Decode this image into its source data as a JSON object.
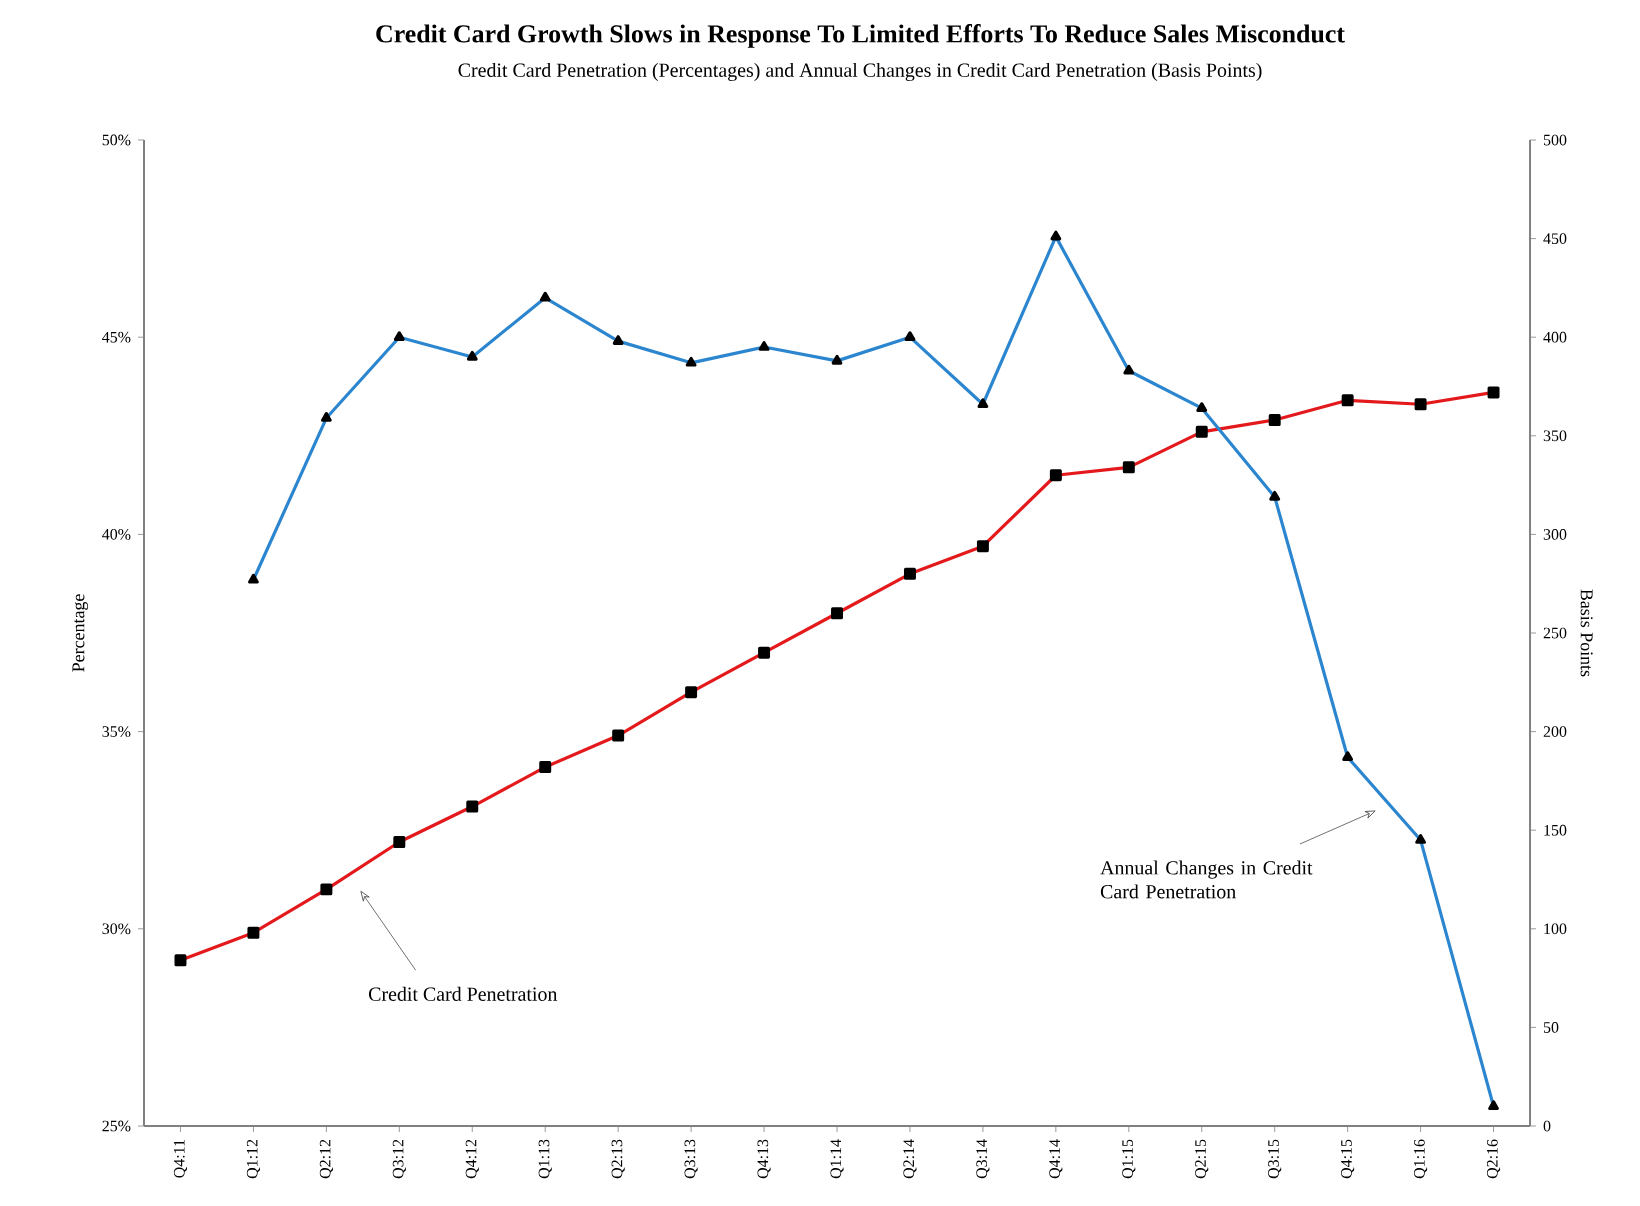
{
  "chart_data": {
    "type": "line",
    "title": "Credit Card Growth Slows in Response To Limited Efforts To Reduce Sales Misconduct",
    "subtitle": "Credit Card Penetration (Percentages) and Annual Changes in Credit Card Penetration (Basis Points)",
    "ylabel": "Percentage",
    "y2label": "Basis Points",
    "categories": [
      "Q4:11",
      "Q1:12",
      "Q2:12",
      "Q3:12",
      "Q4:12",
      "Q1:13",
      "Q2:13",
      "Q3:13",
      "Q4:13",
      "Q1:14",
      "Q2:14",
      "Q3:14",
      "Q4:14",
      "Q1:15",
      "Q2:15",
      "Q3:15",
      "Q4:15",
      "Q1:16",
      "Q2:16"
    ],
    "series": [
      {
        "color": "#e3191c",
        "marker": "square",
        "values": [
          29.2,
          29.9,
          31.0,
          32.2,
          33.1,
          34.1,
          34.9,
          36.0,
          37.0,
          38.0,
          39.0,
          39.7,
          41.5,
          41.7,
          42.6,
          42.9,
          43.4,
          43.3,
          43.6
        ]
      },
      {
        "color": "#2b86cf",
        "marker": "triangle",
        "axis": "y2",
        "values": [
          null,
          277,
          359,
          400,
          390,
          420,
          398,
          387,
          395,
          388,
          400,
          366,
          451,
          383,
          364,
          319,
          187,
          145,
          10
        ]
      }
    ],
    "ylim": [
      25,
      50
    ],
    "yticks": [
      {
        "value": 25,
        "label": "25%"
      },
      {
        "value": 30,
        "label": "30%"
      },
      {
        "value": 35,
        "label": "35%"
      },
      {
        "value": 40,
        "label": "40%"
      },
      {
        "value": 45,
        "label": "45%"
      },
      {
        "value": 50,
        "label": "50%"
      }
    ],
    "y2lim": [
      0,
      500
    ],
    "y2ticks": [
      0,
      50,
      100,
      150,
      200,
      250,
      300,
      350,
      400,
      450,
      500
    ],
    "grid": false,
    "annotations": [
      "Credit Card Penetration",
      "Annual Changes in Credit Card Penetration"
    ]
  }
}
